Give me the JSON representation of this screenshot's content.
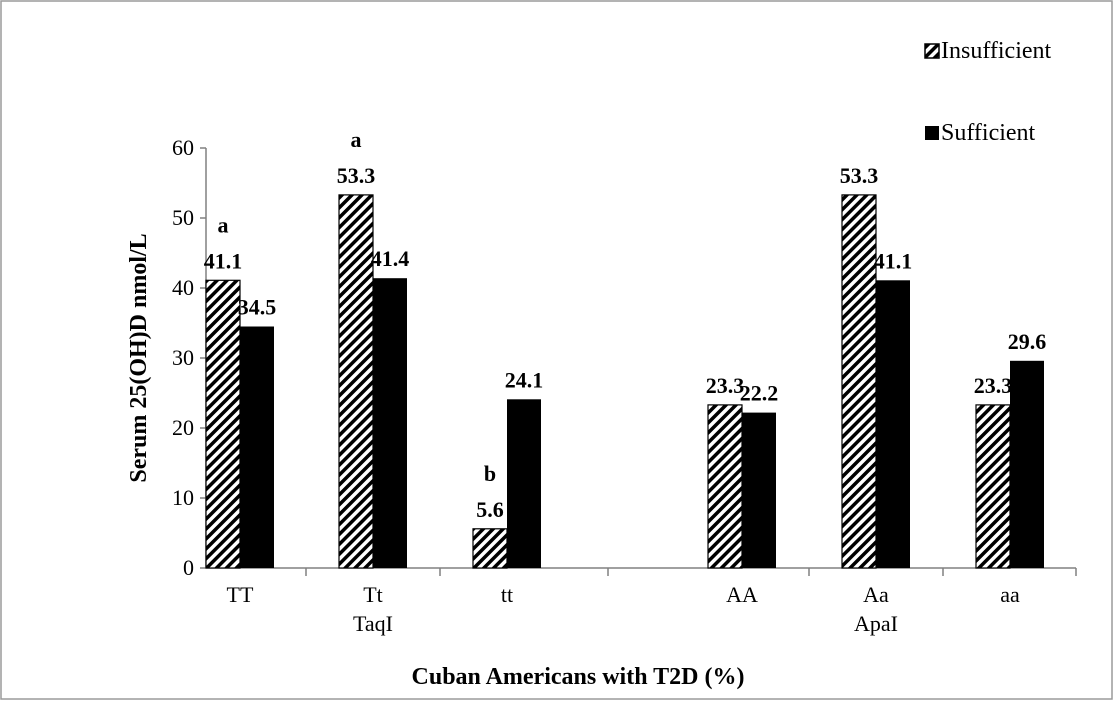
{
  "chart_data": {
    "type": "bar",
    "categories": [
      "TT",
      "Tt",
      "tt",
      "AA",
      "Aa",
      "aa"
    ],
    "group_labels": [
      {
        "category": "Tt",
        "label": "TaqI"
      },
      {
        "category": "Aa",
        "label": "ApaI"
      }
    ],
    "series": [
      {
        "name": "Insufficient",
        "values": [
          41.1,
          53.3,
          5.6,
          23.3,
          53.3,
          23.3
        ],
        "pattern": "diagonal-hatch",
        "color": "#000000"
      },
      {
        "name": "Sufficient",
        "values": [
          34.5,
          41.4,
          24.1,
          22.2,
          41.1,
          29.6
        ],
        "pattern": "solid",
        "color": "#000000"
      }
    ],
    "data_labels": {
      "Insufficient": [
        "41.1",
        "53.3",
        "5.6",
        "23.3",
        "53.3",
        "23.3"
      ],
      "Sufficient": [
        "34.5",
        "41.4",
        "24.1",
        "22.2",
        "41.1",
        "29.6"
      ]
    },
    "significance_labels": [
      {
        "category": "TT",
        "series": "Insufficient",
        "text": "a"
      },
      {
        "category": "Tt",
        "series": "Insufficient",
        "text": "a"
      },
      {
        "category": "tt",
        "series": "Insufficient",
        "text": "b"
      }
    ],
    "xlabel": "Cuban Americans with T2D (%)",
    "ylabel": "Serum 25(OH)D nmol/L",
    "ylim": [
      0,
      60
    ],
    "yticks": [
      0,
      10,
      20,
      30,
      40,
      50,
      60
    ],
    "grid": false,
    "legend_position": "top-right",
    "colors": {
      "bars": "#000000",
      "axis": "#808080",
      "frame": "#9a9a9a",
      "background": "#ffffff"
    }
  }
}
